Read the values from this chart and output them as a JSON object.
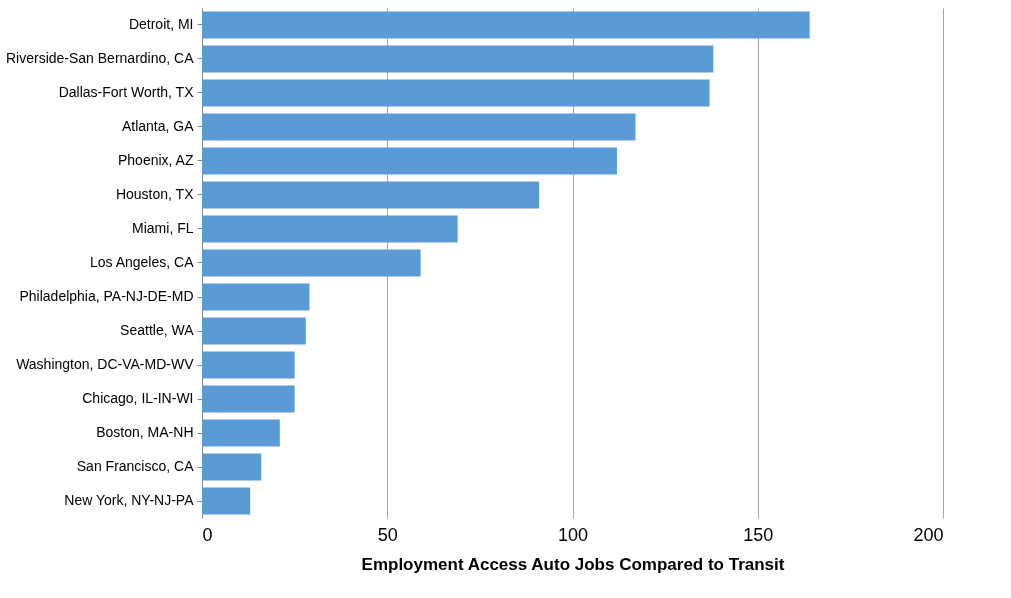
{
  "chart_data": {
    "type": "bar",
    "orientation": "horizontal",
    "xlabel": "Employment Access Auto Jobs Compared to Transit",
    "categories": [
      "Detroit,  MI",
      "Riverside-San Bernardino, CA",
      "Dallas-Fort Worth, TX",
      "Atlanta, GA",
      "Phoenix, AZ",
      "Houston, TX",
      "Miami, FL",
      "Los Angeles, CA",
      "Philadelphia, PA-NJ-DE-MD",
      "Seattle, WA",
      "Washington, DC-VA-MD-WV",
      "Chicago, IL-IN-WI",
      "Boston, MA-NH",
      "San Francisco, CA",
      "New York, NY-NJ-PA"
    ],
    "values": [
      164,
      138,
      137,
      117,
      112,
      91,
      69,
      59,
      29,
      28,
      25,
      25,
      21,
      16,
      13
    ],
    "color": "#5b9bd5",
    "xlim": [
      0,
      200
    ],
    "xticks": [
      0,
      50,
      100,
      150,
      200
    ],
    "grid": "x"
  }
}
